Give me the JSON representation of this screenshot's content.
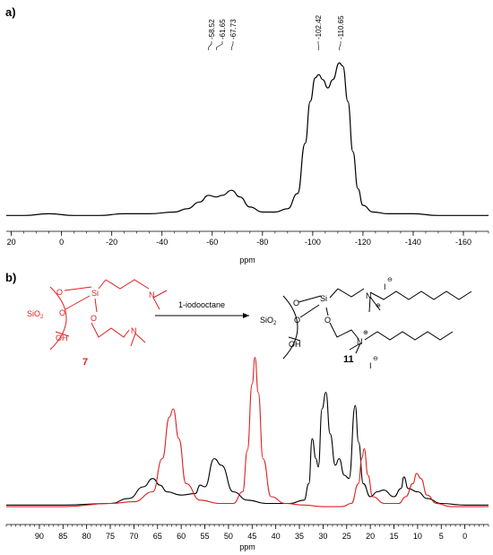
{
  "panels": {
    "a": {
      "label": "a)"
    },
    "b": {
      "label": "b)"
    }
  },
  "scheme": {
    "reagent": "1-iodooctane",
    "compound_start": "7",
    "compound_product": "11",
    "silica": "SiO",
    "silica_sub": "2",
    "si": "Si",
    "o": "O",
    "oh": "OH",
    "n": "N",
    "iodide": "I",
    "plus": "⊕",
    "minus": "⊖"
  },
  "colors": {
    "black_trace": "#000000",
    "red_trace": "#e02020",
    "scheme_red": "#e02020"
  },
  "chart_data": [
    {
      "type": "line",
      "panel": "a",
      "xlabel": "ppm",
      "ylabel": "",
      "xlim": [
        22,
        -170
      ],
      "x_reversed": true,
      "ticks": [
        20,
        0,
        -20,
        -40,
        -60,
        -80,
        -100,
        -120,
        -140,
        -160
      ],
      "tick_labels": [
        "20",
        "0",
        "-20",
        "-40",
        "-60",
        "-80",
        "-100",
        "-120",
        "-140",
        "-160"
      ],
      "peak_labels": [
        {
          "x": -58.52,
          "text": "-58.52"
        },
        {
          "x": -61.65,
          "text": "-61.65"
        },
        {
          "x": -67.73,
          "text": "-67.73"
        },
        {
          "x": -102.42,
          "text": "-102.42"
        },
        {
          "x": -110.65,
          "text": "-110.65"
        }
      ],
      "series": [
        {
          "color": "#000000",
          "points": [
            [
              22,
              0.02
            ],
            [
              15,
              0.02
            ],
            [
              5,
              0.03
            ],
            [
              -5,
              0.02
            ],
            [
              -15,
              0.02
            ],
            [
              -25,
              0.03
            ],
            [
              -35,
              0.03
            ],
            [
              -45,
              0.04
            ],
            [
              -50,
              0.06
            ],
            [
              -55,
              0.1
            ],
            [
              -58.5,
              0.14
            ],
            [
              -61.6,
              0.13
            ],
            [
              -64,
              0.14
            ],
            [
              -67.7,
              0.17
            ],
            [
              -71,
              0.13
            ],
            [
              -75,
              0.07
            ],
            [
              -80,
              0.04
            ],
            [
              -85,
              0.04
            ],
            [
              -90,
              0.06
            ],
            [
              -94,
              0.15
            ],
            [
              -97,
              0.45
            ],
            [
              -99,
              0.7
            ],
            [
              -101,
              0.84
            ],
            [
              -102.4,
              0.86
            ],
            [
              -104,
              0.83
            ],
            [
              -106,
              0.78
            ],
            [
              -108,
              0.83
            ],
            [
              -110.6,
              0.93
            ],
            [
              -112,
              0.91
            ],
            [
              -114,
              0.7
            ],
            [
              -116,
              0.4
            ],
            [
              -118,
              0.18
            ],
            [
              -120,
              0.08
            ],
            [
              -124,
              0.04
            ],
            [
              -130,
              0.03
            ],
            [
              -140,
              0.03
            ],
            [
              -150,
              0.02
            ],
            [
              -160,
              0.02
            ],
            [
              -170,
              0.02
            ]
          ]
        }
      ]
    },
    {
      "type": "line",
      "panel": "b",
      "xlabel": "ppm",
      "ylabel": "",
      "xlim": [
        97,
        -5
      ],
      "x_reversed": true,
      "ticks": [
        90,
        85,
        80,
        75,
        70,
        65,
        60,
        55,
        50,
        45,
        40,
        35,
        30,
        25,
        20,
        15,
        10,
        5,
        0
      ],
      "tick_labels": [
        "90",
        "85",
        "80",
        "75",
        "70",
        "65",
        "60",
        "55",
        "50",
        "45",
        "40",
        "35",
        "30",
        "25",
        "20",
        "15",
        "10",
        "5",
        "0"
      ],
      "series": [
        {
          "color": "#000000",
          "points": [
            [
              97,
              0.02
            ],
            [
              85,
              0.02
            ],
            [
              75,
              0.03
            ],
            [
              71,
              0.06
            ],
            [
              68,
              0.13
            ],
            [
              66,
              0.18
            ],
            [
              64.5,
              0.14
            ],
            [
              63,
              0.1
            ],
            [
              60,
              0.08
            ],
            [
              57,
              0.09
            ],
            [
              56,
              0.14
            ],
            [
              55,
              0.13
            ],
            [
              53,
              0.3
            ],
            [
              51.5,
              0.26
            ],
            [
              49,
              0.1
            ],
            [
              46,
              0.05
            ],
            [
              42,
              0.03
            ],
            [
              37,
              0.03
            ],
            [
              34,
              0.05
            ],
            [
              33,
              0.15
            ],
            [
              32.3,
              0.42
            ],
            [
              31.5,
              0.3
            ],
            [
              31,
              0.25
            ],
            [
              30.2,
              0.6
            ],
            [
              29.4,
              0.7
            ],
            [
              28.5,
              0.45
            ],
            [
              27.4,
              0.26
            ],
            [
              26.6,
              0.3
            ],
            [
              25.5,
              0.2
            ],
            [
              24.5,
              0.18
            ],
            [
              23.2,
              0.62
            ],
            [
              22.5,
              0.4
            ],
            [
              21.5,
              0.15
            ],
            [
              20,
              0.07
            ],
            [
              18.5,
              0.1
            ],
            [
              17.2,
              0.11
            ],
            [
              15,
              0.07
            ],
            [
              13.5,
              0.12
            ],
            [
              12.9,
              0.19
            ],
            [
              12,
              0.12
            ],
            [
              10,
              0.1
            ],
            [
              8,
              0.06
            ],
            [
              5,
              0.03
            ],
            [
              0,
              0.02
            ],
            [
              -5,
              0.02
            ]
          ]
        },
        {
          "color": "#e02020",
          "points": [
            [
              97,
              0.01
            ],
            [
              85,
              0.01
            ],
            [
              75,
              0.03
            ],
            [
              70,
              0.04
            ],
            [
              66,
              0.1
            ],
            [
              64,
              0.3
            ],
            [
              62.5,
              0.55
            ],
            [
              61.7,
              0.6
            ],
            [
              60.5,
              0.42
            ],
            [
              59,
              0.15
            ],
            [
              56,
              0.05
            ],
            [
              52,
              0.03
            ],
            [
              49,
              0.03
            ],
            [
              47,
              0.1
            ],
            [
              46,
              0.35
            ],
            [
              45,
              0.75
            ],
            [
              44.4,
              0.91
            ],
            [
              43.7,
              0.7
            ],
            [
              42.7,
              0.3
            ],
            [
              41,
              0.07
            ],
            [
              38,
              0.03
            ],
            [
              34,
              0.02
            ],
            [
              30,
              0.01
            ],
            [
              26,
              0.01
            ],
            [
              24,
              0.03
            ],
            [
              22.5,
              0.15
            ],
            [
              21.8,
              0.3
            ],
            [
              21.3,
              0.36
            ],
            [
              20.5,
              0.2
            ],
            [
              19.5,
              0.07
            ],
            [
              17,
              0.03
            ],
            [
              14,
              0.03
            ],
            [
              12.5,
              0.07
            ],
            [
              11,
              0.15
            ],
            [
              10.2,
              0.21
            ],
            [
              9.3,
              0.18
            ],
            [
              8,
              0.08
            ],
            [
              6,
              0.03
            ],
            [
              3,
              0.01
            ],
            [
              0,
              0.01
            ],
            [
              -5,
              0.01
            ]
          ]
        }
      ]
    }
  ]
}
